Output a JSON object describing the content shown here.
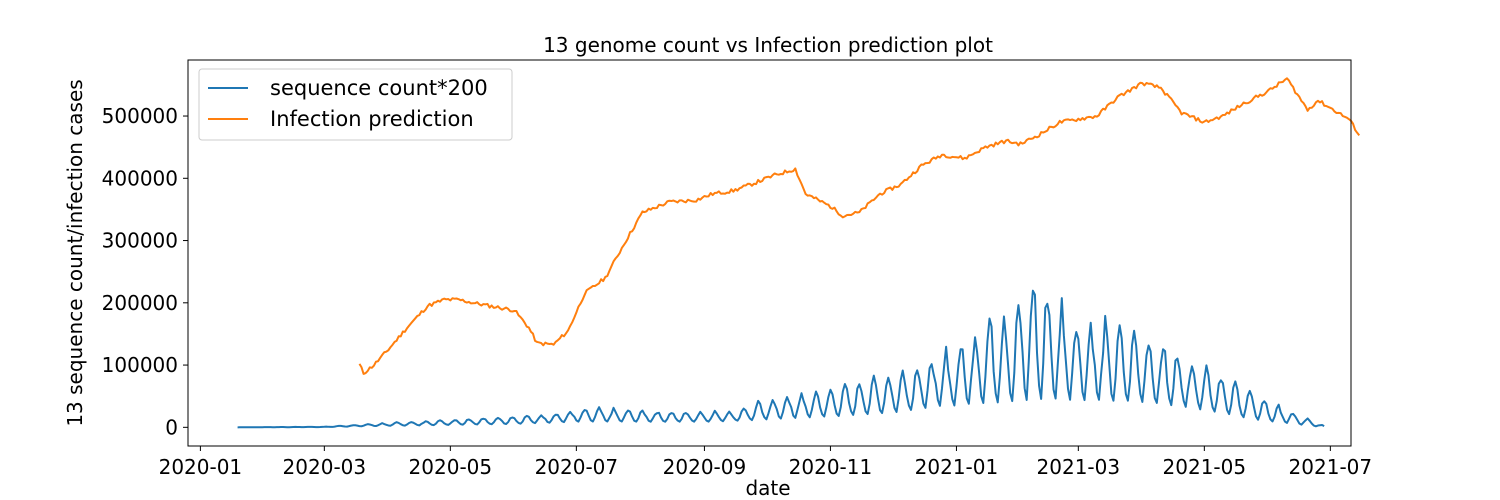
{
  "chart_data": {
    "type": "line",
    "title": "13 genome count vs Infection prediction plot",
    "xlabel": "date",
    "ylabel": "13 sequence count/infection cases",
    "xlim": [
      "2019-12-26",
      "2021-07-11"
    ],
    "ylim": [
      -30000,
      590000
    ],
    "x_ticks": [
      "2020-01",
      "2020-03",
      "2020-05",
      "2020-07",
      "2020-09",
      "2020-11",
      "2021-01",
      "2021-03",
      "2021-05",
      "2021-07"
    ],
    "y_ticks": [
      0,
      100000,
      200000,
      300000,
      400000,
      500000
    ],
    "grid": false,
    "legend_position": "upper-left",
    "series": [
      {
        "name": "sequence count*200",
        "color": "#1f77b4",
        "type": "weekly-oscillating",
        "start": "2020-01-19",
        "end": "2021-06-28",
        "baseline": [
          [
            "2020-01-19",
            0
          ],
          [
            "2020-03-01",
            500
          ],
          [
            "2020-03-20",
            3000
          ],
          [
            "2020-04-15",
            5000
          ],
          [
            "2020-06-01",
            9000
          ],
          [
            "2020-07-01",
            15000
          ],
          [
            "2020-08-01",
            15000
          ],
          [
            "2020-09-01",
            15000
          ],
          [
            "2020-10-01",
            20000
          ],
          [
            "2020-11-01",
            28000
          ],
          [
            "2020-12-01",
            38000
          ],
          [
            "2020-12-25",
            55000
          ],
          [
            "2021-01-15",
            60000
          ],
          [
            "2021-02-08",
            65000
          ],
          [
            "2021-03-01",
            70000
          ],
          [
            "2021-04-01",
            65000
          ],
          [
            "2021-05-01",
            45000
          ],
          [
            "2021-05-25",
            20000
          ],
          [
            "2021-06-28",
            0
          ]
        ],
        "peaks": [
          [
            "2020-01-19",
            0
          ],
          [
            "2020-03-01",
            1000
          ],
          [
            "2020-04-01",
            7000
          ],
          [
            "2020-05-01",
            12000
          ],
          [
            "2020-06-15",
            20000
          ],
          [
            "2020-07-10",
            30000
          ],
          [
            "2020-08-15",
            24000
          ],
          [
            "2020-09-15",
            26000
          ],
          [
            "2020-10-05",
            48000
          ],
          [
            "2020-11-01",
            60000
          ],
          [
            "2020-12-01",
            85000
          ],
          [
            "2021-01-01",
            125000
          ],
          [
            "2021-01-15",
            170000
          ],
          [
            "2021-02-01",
            200000
          ],
          [
            "2021-02-08",
            240000
          ],
          [
            "2021-03-01",
            170000
          ],
          [
            "2021-04-01",
            150000
          ],
          [
            "2021-05-01",
            100000
          ],
          [
            "2021-06-01",
            40000
          ],
          [
            "2021-06-28",
            2000
          ]
        ]
      },
      {
        "name": "Infection prediction",
        "color": "#ff7f0e",
        "type": "line",
        "points": [
          [
            "2020-03-18",
            101000
          ],
          [
            "2020-03-20",
            87000
          ],
          [
            "2020-03-25",
            100000
          ],
          [
            "2020-04-01",
            125000
          ],
          [
            "2020-04-10",
            160000
          ],
          [
            "2020-04-20",
            195000
          ],
          [
            "2020-04-28",
            205000
          ],
          [
            "2020-05-05",
            205000
          ],
          [
            "2020-05-12",
            200000
          ],
          [
            "2020-05-20",
            195000
          ],
          [
            "2020-06-01",
            188000
          ],
          [
            "2020-06-08",
            160000
          ],
          [
            "2020-06-12",
            135000
          ],
          [
            "2020-06-20",
            133000
          ],
          [
            "2020-06-27",
            155000
          ],
          [
            "2020-07-05",
            215000
          ],
          [
            "2020-07-15",
            240000
          ],
          [
            "2020-07-25",
            300000
          ],
          [
            "2020-08-02",
            345000
          ],
          [
            "2020-08-15",
            362000
          ],
          [
            "2020-08-28",
            365000
          ],
          [
            "2020-09-05",
            375000
          ],
          [
            "2020-09-15",
            380000
          ],
          [
            "2020-09-25",
            392000
          ],
          [
            "2020-10-05",
            405000
          ],
          [
            "2020-10-15",
            415000
          ],
          [
            "2020-10-20",
            375000
          ],
          [
            "2020-11-01",
            355000
          ],
          [
            "2020-11-07",
            340000
          ],
          [
            "2020-11-15",
            345000
          ],
          [
            "2020-11-25",
            375000
          ],
          [
            "2020-12-05",
            390000
          ],
          [
            "2020-12-15",
            420000
          ],
          [
            "2020-12-25",
            438000
          ],
          [
            "2021-01-05",
            432000
          ],
          [
            "2021-01-15",
            450000
          ],
          [
            "2021-01-25",
            460000
          ],
          [
            "2021-02-01",
            455000
          ],
          [
            "2021-02-10",
            470000
          ],
          [
            "2021-02-20",
            490000
          ],
          [
            "2021-03-01",
            495000
          ],
          [
            "2021-03-10",
            500000
          ],
          [
            "2021-03-20",
            530000
          ],
          [
            "2021-04-01",
            553000
          ],
          [
            "2021-04-10",
            545000
          ],
          [
            "2021-04-20",
            505000
          ],
          [
            "2021-05-01",
            490000
          ],
          [
            "2021-05-10",
            500000
          ],
          [
            "2021-05-20",
            520000
          ],
          [
            "2021-06-01",
            540000
          ],
          [
            "2021-06-10",
            560000
          ],
          [
            "2021-06-20",
            510000
          ],
          [
            "2021-06-25",
            525000
          ],
          [
            "2021-07-05",
            505000
          ],
          [
            "2021-07-10",
            495000
          ],
          [
            "2021-07-15",
            470000
          ]
        ]
      }
    ]
  }
}
